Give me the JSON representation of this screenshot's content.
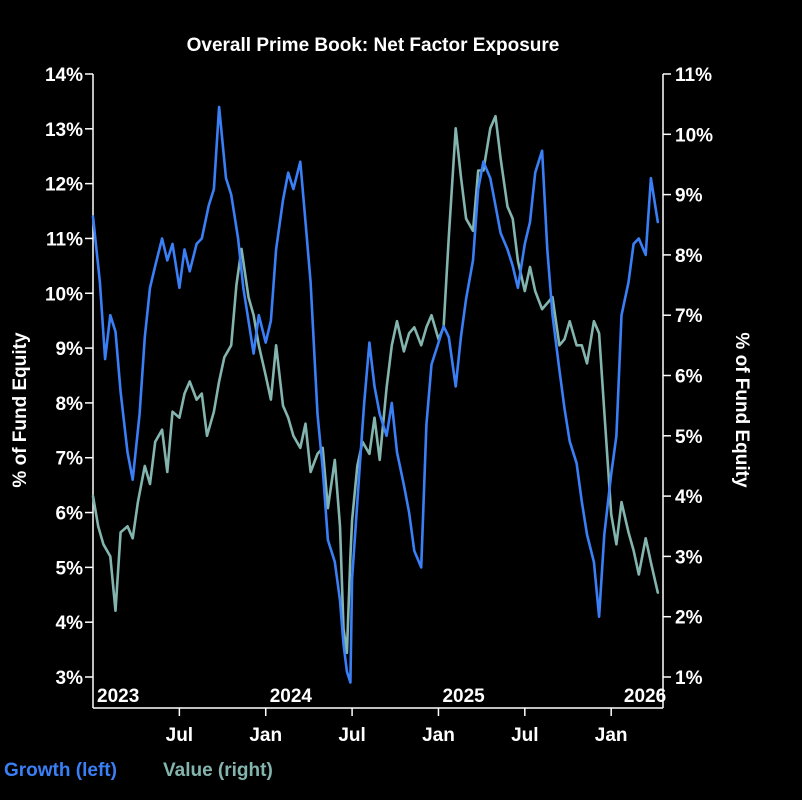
{
  "chart_data": {
    "type": "line",
    "title": "Overall Prime Book: Net Factor Exposure",
    "ylabel_left": "% of Fund Equity",
    "ylabel_right": "% of Fund Equity",
    "ylim_left": [
      3,
      14
    ],
    "ylim_right": [
      1,
      11
    ],
    "yticks_left": [
      "3%",
      "4%",
      "5%",
      "6%",
      "7%",
      "8%",
      "9%",
      "10%",
      "11%",
      "12%",
      "13%",
      "14%"
    ],
    "yticks_right": [
      "1%",
      "2%",
      "3%",
      "4%",
      "5%",
      "6%",
      "7%",
      "8%",
      "9%",
      "10%",
      "11%"
    ],
    "xlim": [
      2023.0,
      2026.3
    ],
    "year_labels": [
      {
        "label": "2023",
        "x": 2023.0
      },
      {
        "label": "2024",
        "x": 2024.0
      },
      {
        "label": "2025",
        "x": 2025.0
      },
      {
        "label": "2026",
        "x": 2026.0
      }
    ],
    "month_ticks": [
      {
        "label": "Jul",
        "x": 2023.5
      },
      {
        "label": "Jan",
        "x": 2024.0
      },
      {
        "label": "Jul",
        "x": 2024.5
      },
      {
        "label": "Jan",
        "x": 2025.0
      },
      {
        "label": "Jul",
        "x": 2025.5
      },
      {
        "label": "Jan",
        "x": 2026.0
      }
    ],
    "grid": false,
    "legend": [
      {
        "name": "Growth (left)",
        "color": "#3a7ff6"
      },
      {
        "name": "Value (right)",
        "color": "#84b4ae"
      }
    ],
    "series": [
      {
        "name": "Growth (left)",
        "axis": "left",
        "color": "#3a7ff6",
        "x": [
          2023.0,
          2023.04,
          2023.07,
          2023.1,
          2023.13,
          2023.16,
          2023.2,
          2023.23,
          2023.27,
          2023.3,
          2023.33,
          2023.36,
          2023.4,
          2023.43,
          2023.46,
          2023.5,
          2023.53,
          2023.56,
          2023.6,
          2023.63,
          2023.67,
          2023.7,
          2023.73,
          2023.77,
          2023.8,
          2023.84,
          2023.87,
          2023.9,
          2023.93,
          2023.96,
          2024.0,
          2024.03,
          2024.06,
          2024.1,
          2024.13,
          2024.16,
          2024.2,
          2024.23,
          2024.26,
          2024.3,
          2024.33,
          2024.36,
          2024.4,
          2024.43,
          2024.45,
          2024.47,
          2024.49,
          2024.5,
          2024.52,
          2024.55,
          2024.57,
          2024.6,
          2024.63,
          2024.66,
          2024.7,
          2024.73,
          2024.76,
          2024.8,
          2024.83,
          2024.86,
          2024.9,
          2024.93,
          2024.96,
          2025.0,
          2025.03,
          2025.06,
          2025.1,
          2025.13,
          2025.16,
          2025.2,
          2025.23,
          2025.26,
          2025.3,
          2025.33,
          2025.36,
          2025.4,
          2025.43,
          2025.46,
          2025.5,
          2025.53,
          2025.56,
          2025.6,
          2025.63,
          2025.66,
          2025.7,
          2025.73,
          2025.76,
          2025.8,
          2025.83,
          2025.86,
          2025.9,
          2025.93,
          2025.96,
          2026.0,
          2026.03,
          2026.06,
          2026.1,
          2026.13,
          2026.16,
          2026.2,
          2026.23,
          2026.27
        ],
        "values": [
          11.4,
          10.2,
          8.8,
          9.6,
          9.3,
          8.2,
          7.1,
          6.6,
          7.8,
          9.2,
          10.1,
          10.5,
          11.0,
          10.6,
          10.9,
          10.1,
          10.8,
          10.4,
          10.9,
          11.0,
          11.6,
          11.9,
          13.4,
          12.1,
          11.8,
          11.0,
          10.1,
          9.5,
          8.9,
          9.6,
          9.1,
          9.5,
          10.8,
          11.7,
          12.2,
          11.9,
          12.4,
          11.3,
          10.2,
          7.8,
          6.8,
          5.5,
          5.1,
          4.4,
          3.6,
          3.1,
          2.9,
          4.8,
          5.7,
          7.1,
          8.0,
          9.1,
          8.3,
          7.8,
          7.4,
          8.0,
          7.1,
          6.5,
          6.0,
          5.3,
          5.0,
          7.6,
          8.7,
          9.1,
          9.4,
          9.2,
          8.3,
          9.2,
          9.9,
          10.6,
          11.9,
          12.4,
          12.1,
          11.6,
          11.1,
          10.8,
          10.5,
          10.1,
          10.9,
          11.3,
          12.2,
          12.6,
          10.8,
          9.6,
          8.6,
          7.9,
          7.3,
          6.9,
          6.2,
          5.6,
          5.1,
          4.1,
          5.6,
          6.7,
          7.4,
          9.6,
          10.2,
          10.9,
          11.0,
          10.7,
          12.1,
          11.3
        ]
      },
      {
        "name": "Value (right)",
        "axis": "right",
        "color": "#84b4ae",
        "x": [
          2023.0,
          2023.03,
          2023.06,
          2023.1,
          2023.13,
          2023.16,
          2023.2,
          2023.23,
          2023.26,
          2023.3,
          2023.33,
          2023.36,
          2023.4,
          2023.43,
          2023.46,
          2023.5,
          2023.53,
          2023.56,
          2023.6,
          2023.63,
          2023.66,
          2023.7,
          2023.73,
          2023.76,
          2023.8,
          2023.83,
          2023.86,
          2023.9,
          2023.93,
          2023.96,
          2024.0,
          2024.03,
          2024.06,
          2024.1,
          2024.13,
          2024.16,
          2024.2,
          2024.23,
          2024.26,
          2024.3,
          2024.33,
          2024.36,
          2024.4,
          2024.43,
          2024.45,
          2024.47,
          2024.49,
          2024.5,
          2024.53,
          2024.56,
          2024.6,
          2024.63,
          2024.66,
          2024.7,
          2024.73,
          2024.76,
          2024.8,
          2024.83,
          2024.86,
          2024.9,
          2024.93,
          2024.96,
          2025.0,
          2025.03,
          2025.06,
          2025.1,
          2025.13,
          2025.16,
          2025.2,
          2025.23,
          2025.26,
          2025.3,
          2025.33,
          2025.36,
          2025.4,
          2025.43,
          2025.46,
          2025.5,
          2025.53,
          2025.56,
          2025.6,
          2025.63,
          2025.66,
          2025.7,
          2025.73,
          2025.76,
          2025.8,
          2025.83,
          2025.86,
          2025.9,
          2025.93,
          2025.96,
          2026.0,
          2026.03,
          2026.06,
          2026.1,
          2026.13,
          2026.16,
          2026.2,
          2026.23,
          2026.27
        ],
        "values": [
          4.0,
          3.5,
          3.2,
          3.0,
          2.1,
          3.4,
          3.5,
          3.3,
          3.9,
          4.5,
          4.2,
          4.9,
          5.1,
          4.4,
          5.4,
          5.3,
          5.7,
          5.9,
          5.6,
          5.7,
          5.0,
          5.4,
          5.9,
          6.3,
          6.5,
          7.5,
          8.1,
          7.3,
          7.0,
          6.5,
          6.0,
          5.6,
          6.5,
          5.5,
          5.3,
          5.0,
          4.8,
          5.2,
          4.4,
          4.7,
          4.8,
          3.8,
          4.6,
          3.5,
          1.8,
          1.4,
          3.0,
          3.6,
          4.5,
          4.9,
          4.7,
          5.3,
          4.6,
          5.8,
          6.5,
          6.9,
          6.4,
          6.7,
          6.8,
          6.5,
          6.8,
          7.0,
          6.6,
          6.8,
          8.3,
          10.1,
          9.3,
          8.6,
          8.4,
          9.4,
          9.4,
          10.1,
          10.3,
          9.6,
          8.8,
          8.6,
          7.9,
          7.4,
          7.8,
          7.4,
          7.1,
          7.2,
          7.3,
          6.5,
          6.6,
          6.9,
          6.5,
          6.5,
          6.2,
          6.9,
          6.7,
          5.4,
          3.7,
          3.2,
          3.9,
          3.4,
          3.1,
          2.7,
          3.3,
          2.9,
          2.4
        ]
      }
    ]
  }
}
